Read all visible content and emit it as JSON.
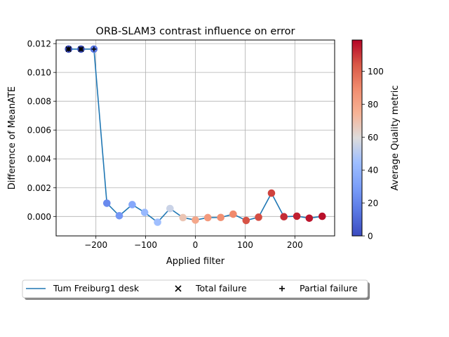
{
  "chart_data": {
    "type": "scatter",
    "title": "ORB-SLAM3 contrast influence on error",
    "xlabel": "Applied filter",
    "ylabel": "Difference of MeanATE",
    "xlim": [
      -280,
      280
    ],
    "ylim": [
      -0.00135,
      0.01225
    ],
    "grid": true,
    "xticks": [
      -200,
      -100,
      0,
      100,
      200
    ],
    "xtick_labels": [
      "−200",
      "−100",
      "0",
      "100",
      "200"
    ],
    "yticks": [
      0.0,
      0.002,
      0.004,
      0.006,
      0.008,
      0.01,
      0.012
    ],
    "ytick_labels": [
      "0.000",
      "0.002",
      "0.004",
      "0.006",
      "0.008",
      "0.010",
      "0.012"
    ],
    "colorbar": {
      "label": "Average Quality metric",
      "range": [
        0,
        119
      ],
      "ticks": [
        0,
        20,
        40,
        60,
        80,
        100
      ],
      "tick_labels": [
        "0",
        "20",
        "40",
        "60",
        "80",
        "100"
      ],
      "colormap": "coolwarm"
    },
    "series": [
      {
        "name": "Tum Freiburg1 desk",
        "color": "#1f77b4",
        "x": [
          -255,
          -230,
          -204,
          -178,
          -153,
          -127,
          -102,
          -76,
          -51,
          -25,
          0,
          25,
          51,
          76,
          102,
          127,
          153,
          178,
          204,
          229,
          255
        ],
        "y": [
          0.01162,
          0.01162,
          0.01162,
          0.00092,
          5e-05,
          0.00082,
          0.00028,
          -0.0004,
          0.00055,
          -8e-05,
          -0.00025,
          -8e-05,
          -7e-05,
          0.00016,
          -0.00028,
          -5e-05,
          0.00162,
          -2e-05,
          2e-05,
          -0.00012,
          1e-05
        ],
        "quality": [
          1,
          3,
          16,
          22,
          27,
          34,
          42,
          45,
          55,
          68,
          79,
          84,
          88,
          90,
          105,
          106,
          108,
          112,
          114,
          116,
          117
        ]
      }
    ],
    "failures": {
      "total_x": [
        -255,
        -230
      ],
      "partial_x": [
        -255,
        -230,
        -204
      ]
    },
    "legend": {
      "position": "bottom-center",
      "entries": [
        "Tum Freiburg1 desk",
        "Total failure",
        "Partial failure"
      ]
    }
  }
}
